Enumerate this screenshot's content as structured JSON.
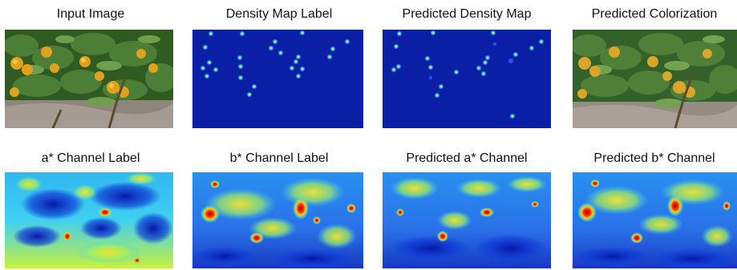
{
  "panels": [
    {
      "title": "Input Image",
      "kind": "photo"
    },
    {
      "title": "Density Map Label",
      "kind": "density"
    },
    {
      "title": "Predicted Density Map",
      "kind": "density"
    },
    {
      "title": "Predicted Colorization",
      "kind": "photo"
    },
    {
      "title": "a* Channel Label",
      "kind": "heatmap"
    },
    {
      "title": "b* Channel Label",
      "kind": "heatmap"
    },
    {
      "title": "Predicted a* Channel",
      "kind": "heatmap"
    },
    {
      "title": "Predicted b* Channel",
      "kind": "heatmap"
    }
  ],
  "colors": {
    "density_background": "#0a1ea6",
    "density_spot": "#aef07a",
    "jet_cold": "#1030c8",
    "jet_mid": "#3ad0f0",
    "jet_warm": "#f0d020",
    "jet_hot": "#d01010",
    "leaf": "#3b6b2a",
    "orange_fruit": "#e0a21c",
    "soil": "#9a8f87"
  }
}
